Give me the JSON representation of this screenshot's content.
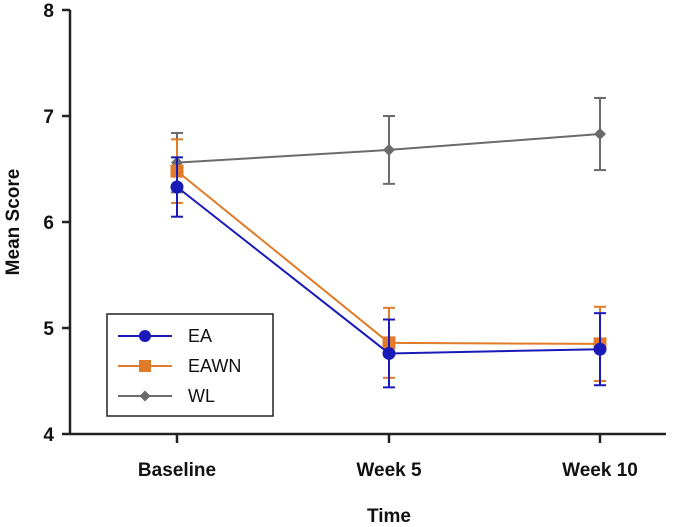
{
  "chart_data": {
    "type": "line",
    "categories": [
      "Baseline",
      "Week 5",
      "Week 10"
    ],
    "xlabel": "Time",
    "ylabel": "Mean Score",
    "ylim": [
      4,
      8
    ],
    "yticks": [
      4,
      5,
      6,
      7,
      8
    ],
    "grid": false,
    "legend_position": "bottom-left",
    "series": [
      {
        "name": "EA",
        "color": "#1a1ab8",
        "marker": "circle",
        "values": [
          6.33,
          4.76,
          4.8
        ],
        "error": [
          0.28,
          0.32,
          0.34
        ]
      },
      {
        "name": "EAWN",
        "color": "#e07b2a",
        "marker": "square",
        "values": [
          6.48,
          4.86,
          4.85
        ],
        "error": [
          0.3,
          0.33,
          0.35
        ]
      },
      {
        "name": "WL",
        "color": "#6b6b6b",
        "marker": "diamond",
        "values": [
          6.56,
          6.68,
          6.83
        ],
        "error": [
          0.28,
          0.32,
          0.34
        ]
      }
    ]
  }
}
